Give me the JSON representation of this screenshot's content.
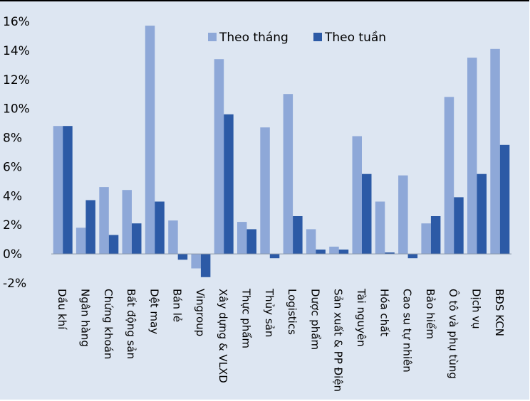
{
  "chart_data": {
    "type": "bar",
    "categories": [
      "Dầu khí",
      "Ngân hàng",
      "Chứng khoán",
      "Bất động sản",
      "Dệt may",
      "Bán lẻ",
      "Vingroup",
      "Xây dựng & VLXD",
      "Thực phẩm",
      "Thủy sản",
      "Logistics",
      "Dược phẩm",
      "Sản xuất & PP Điện",
      "Tài nguyên",
      "Hóa chất",
      "Cao su tự nhiên",
      "Bảo hiểm",
      "Ô tô và phụ tùng",
      "Dịch vụ",
      "BĐS KCN"
    ],
    "series": [
      {
        "name": "Theo tháng",
        "color": "#8ea8d8",
        "values": [
          8.8,
          1.8,
          4.6,
          4.4,
          15.7,
          2.3,
          -1.0,
          13.4,
          2.2,
          8.7,
          11.0,
          1.7,
          0.5,
          8.1,
          3.6,
          5.4,
          2.1,
          10.8,
          13.5,
          14.1
        ]
      },
      {
        "name": "Theo tuần",
        "color": "#2c5aa6",
        "values": [
          8.8,
          3.7,
          1.3,
          2.1,
          3.6,
          -0.4,
          -1.6,
          9.6,
          1.7,
          -0.3,
          2.6,
          0.3,
          0.3,
          5.5,
          0.1,
          -0.3,
          2.6,
          3.9,
          5.5,
          7.5
        ]
      }
    ],
    "ylim": [
      -2,
      16
    ],
    "yticks": [
      -2,
      0,
      2,
      4,
      6,
      8,
      10,
      12,
      14,
      16
    ],
    "ytick_labels": [
      "-2%",
      "0%",
      "2%",
      "4%",
      "6%",
      "8%",
      "10%",
      "12%",
      "14%",
      "16%"
    ],
    "grid": false,
    "legend": "top-center",
    "title": "",
    "xlabel": "",
    "ylabel": ""
  }
}
